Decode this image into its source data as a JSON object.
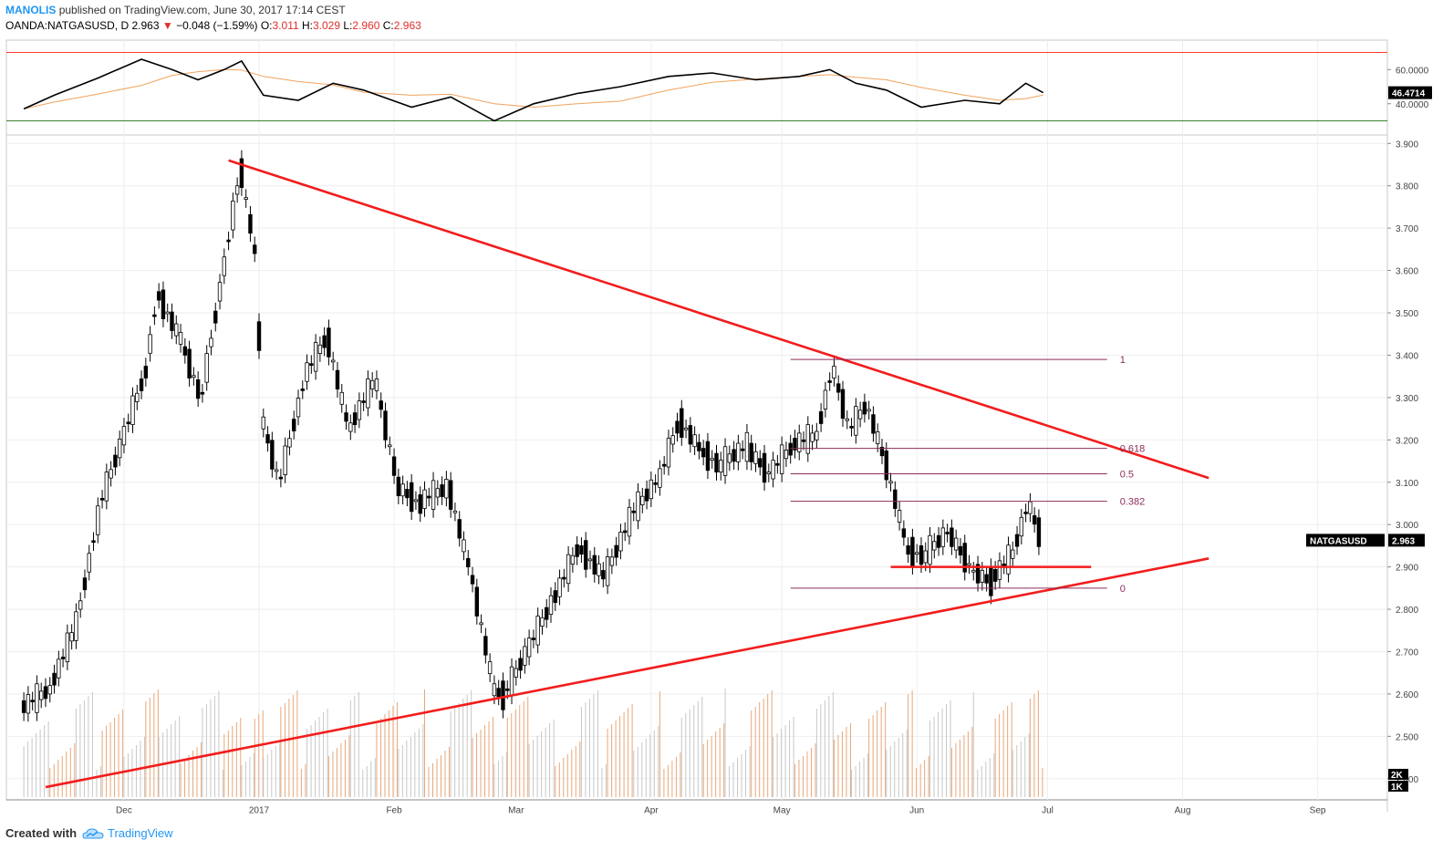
{
  "header": {
    "author": "MANOLIS",
    "published": "published on TradingView.com, June 30, 2017 17:14 CEST",
    "symbol": "OANDA:NATGASUSD, D",
    "last": "2.963",
    "change": "−0.048 (−1.59%)",
    "o_label": "O:",
    "o_value": "3.011",
    "h_label": "H:",
    "h_value": "3.029",
    "l_label": "L:",
    "l_value": "2.960",
    "c_label": "C:",
    "c_value": "2.963"
  },
  "footer": {
    "created_with": "Created with",
    "brand": "TradingView"
  },
  "chart_data": {
    "type": "line",
    "price_axis": {
      "ticks": [
        "3.900",
        "3.800",
        "3.700",
        "3.600",
        "3.500",
        "3.400",
        "3.300",
        "3.200",
        "3.100",
        "3.000",
        "2.900",
        "2.800",
        "2.700",
        "2.600",
        "2.500",
        "2.400"
      ],
      "ylim": [
        2.35,
        3.92
      ],
      "last_price_tag": {
        "label": "NATGASUSD",
        "value": "2.963"
      }
    },
    "rsi_axis": {
      "ticks": [
        "60.0000",
        "40.0000"
      ],
      "current": "46.4714",
      "upper_band": 70,
      "lower_band": 30
    },
    "volume_axis": {
      "ticks": [
        "2K",
        "1K"
      ]
    },
    "time_axis": [
      "Dec",
      "2017",
      "Feb",
      "Mar",
      "Apr",
      "May",
      "Jun",
      "Jul",
      "Aug",
      "Sep"
    ],
    "price_path": [
      {
        "x": "2016-11-08",
        "y": 2.56
      },
      {
        "x": "2016-11-14",
        "y": 2.6
      },
      {
        "x": "2016-11-20",
        "y": 2.75
      },
      {
        "x": "2016-11-26",
        "y": 3.05
      },
      {
        "x": "2016-12-01",
        "y": 3.2
      },
      {
        "x": "2016-12-06",
        "y": 3.35
      },
      {
        "x": "2016-12-09",
        "y": 3.55
      },
      {
        "x": "2016-12-14",
        "y": 3.45
      },
      {
        "x": "2016-12-19",
        "y": 3.3
      },
      {
        "x": "2016-12-24",
        "y": 3.6
      },
      {
        "x": "2016-12-28",
        "y": 3.84
      },
      {
        "x": "2016-12-31",
        "y": 3.66
      },
      {
        "x": "2017-01-02",
        "y": 3.25
      },
      {
        "x": "2017-01-06",
        "y": 3.1
      },
      {
        "x": "2017-01-12",
        "y": 3.35
      },
      {
        "x": "2017-01-17",
        "y": 3.44
      },
      {
        "x": "2017-01-22",
        "y": 3.22
      },
      {
        "x": "2017-01-28",
        "y": 3.34
      },
      {
        "x": "2017-02-02",
        "y": 3.1
      },
      {
        "x": "2017-02-08",
        "y": 3.05
      },
      {
        "x": "2017-02-14",
        "y": 3.08
      },
      {
        "x": "2017-02-19",
        "y": 2.88
      },
      {
        "x": "2017-02-24",
        "y": 2.62
      },
      {
        "x": "2017-02-27",
        "y": 2.6
      },
      {
        "x": "2017-03-04",
        "y": 2.7
      },
      {
        "x": "2017-03-10",
        "y": 2.82
      },
      {
        "x": "2017-03-16",
        "y": 2.95
      },
      {
        "x": "2017-03-22",
        "y": 2.88
      },
      {
        "x": "2017-03-28",
        "y": 3.02
      },
      {
        "x": "2017-04-03",
        "y": 3.1
      },
      {
        "x": "2017-04-08",
        "y": 3.25
      },
      {
        "x": "2017-04-13",
        "y": 3.18
      },
      {
        "x": "2017-04-18",
        "y": 3.14
      },
      {
        "x": "2017-04-24",
        "y": 3.18
      },
      {
        "x": "2017-04-29",
        "y": 3.12
      },
      {
        "x": "2017-05-04",
        "y": 3.18
      },
      {
        "x": "2017-05-09",
        "y": 3.2
      },
      {
        "x": "2017-05-13",
        "y": 3.37
      },
      {
        "x": "2017-05-17",
        "y": 3.22
      },
      {
        "x": "2017-05-21",
        "y": 3.28
      },
      {
        "x": "2017-05-25",
        "y": 3.15
      },
      {
        "x": "2017-05-30",
        "y": 2.95
      },
      {
        "x": "2017-06-04",
        "y": 2.93
      },
      {
        "x": "2017-06-09",
        "y": 2.98
      },
      {
        "x": "2017-06-14",
        "y": 2.9
      },
      {
        "x": "2017-06-19",
        "y": 2.87
      },
      {
        "x": "2017-06-23",
        "y": 2.92
      },
      {
        "x": "2017-06-27",
        "y": 3.05
      },
      {
        "x": "2017-06-30",
        "y": 2.963
      }
    ],
    "drawn_lines": [
      {
        "name": "descending-trendline",
        "from": {
          "x": "2016-12-25",
          "y": 3.86
        },
        "to": {
          "x": "2017-08-07",
          "y": 3.11
        }
      },
      {
        "name": "ascending-trendline",
        "from": {
          "x": "2016-11-13",
          "y": 2.38
        },
        "to": {
          "x": "2017-08-07",
          "y": 2.92
        }
      },
      {
        "name": "horizontal-support",
        "from": {
          "x": "2017-05-26",
          "y": 2.9
        },
        "to": {
          "x": "2017-07-11",
          "y": 2.9
        }
      }
    ],
    "fibonacci": {
      "from": "2017-05-03",
      "to": "2017-06-30",
      "levels": [
        {
          "label": "1",
          "value": 3.39
        },
        {
          "label": "0.618",
          "value": 3.18
        },
        {
          "label": "0.5",
          "value": 3.12
        },
        {
          "label": "0.382",
          "value": 3.055
        },
        {
          "label": "0",
          "value": 2.85
        }
      ]
    },
    "rsi_path": [
      {
        "x": "2016-11-08",
        "y": 37
      },
      {
        "x": "2016-11-15",
        "y": 45
      },
      {
        "x": "2016-11-25",
        "y": 55
      },
      {
        "x": "2016-12-05",
        "y": 66
      },
      {
        "x": "2016-12-12",
        "y": 60
      },
      {
        "x": "2016-12-18",
        "y": 54
      },
      {
        "x": "2016-12-24",
        "y": 60
      },
      {
        "x": "2016-12-28",
        "y": 65
      },
      {
        "x": "2017-01-02",
        "y": 45
      },
      {
        "x": "2017-01-10",
        "y": 42
      },
      {
        "x": "2017-01-18",
        "y": 52
      },
      {
        "x": "2017-01-25",
        "y": 48
      },
      {
        "x": "2017-02-05",
        "y": 38
      },
      {
        "x": "2017-02-14",
        "y": 44
      },
      {
        "x": "2017-02-24",
        "y": 30
      },
      {
        "x": "2017-03-05",
        "y": 40
      },
      {
        "x": "2017-03-15",
        "y": 46
      },
      {
        "x": "2017-03-25",
        "y": 50
      },
      {
        "x": "2017-04-05",
        "y": 56
      },
      {
        "x": "2017-04-15",
        "y": 58
      },
      {
        "x": "2017-04-25",
        "y": 54
      },
      {
        "x": "2017-05-05",
        "y": 56
      },
      {
        "x": "2017-05-12",
        "y": 60
      },
      {
        "x": "2017-05-18",
        "y": 52
      },
      {
        "x": "2017-05-25",
        "y": 48
      },
      {
        "x": "2017-06-02",
        "y": 38
      },
      {
        "x": "2017-06-12",
        "y": 42
      },
      {
        "x": "2017-06-20",
        "y": 40
      },
      {
        "x": "2017-06-26",
        "y": 52
      },
      {
        "x": "2017-06-30",
        "y": 46.4714
      }
    ]
  }
}
